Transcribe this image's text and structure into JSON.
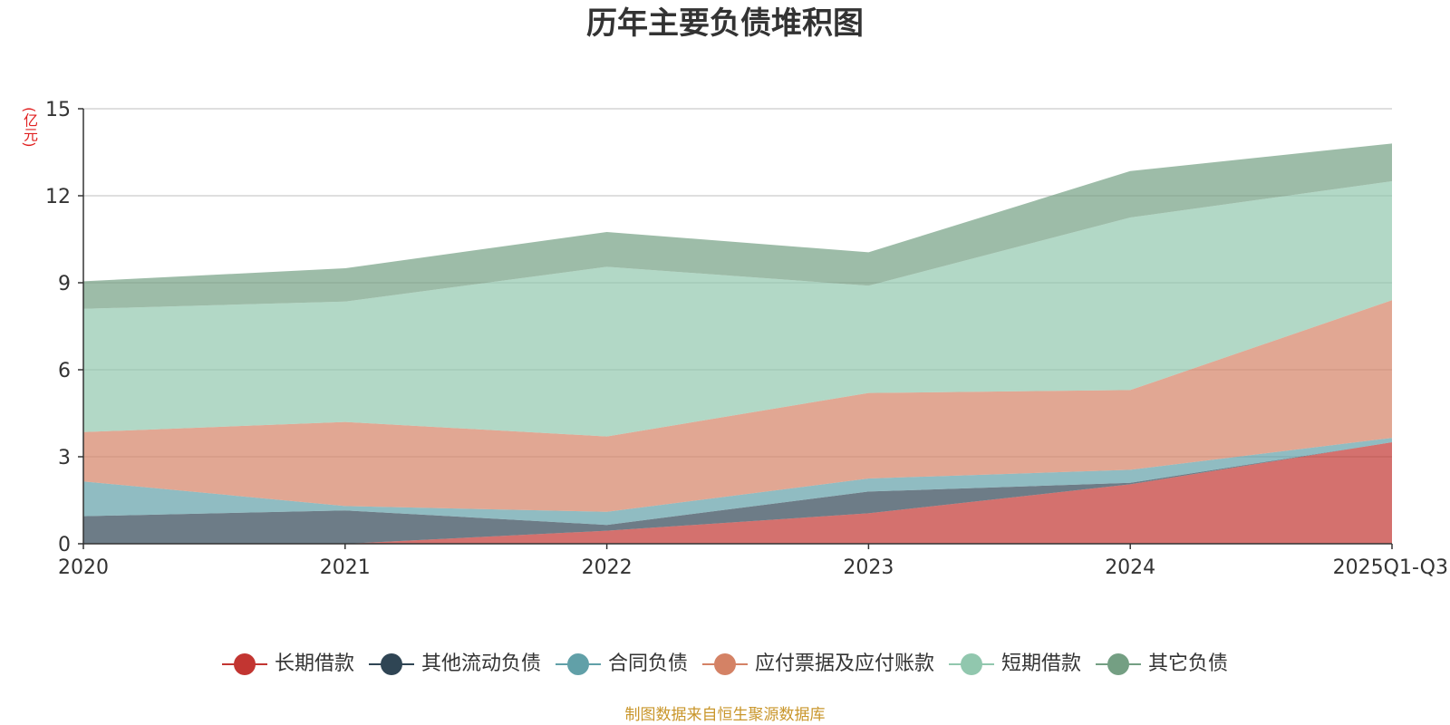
{
  "chart_data": {
    "type": "area",
    "stacked": true,
    "title": "历年主要负债堆积图",
    "unit_label": "(亿元)",
    "source_note": "制图数据来自恒生聚源数据库",
    "categories": [
      "2020",
      "2021",
      "2022",
      "2023",
      "2024",
      "2025Q1-Q3"
    ],
    "ylim": [
      0,
      15
    ],
    "yticks": [
      0,
      3,
      6,
      9,
      12,
      15
    ],
    "ytick_labels": [
      "0",
      "3",
      "6",
      "9",
      "12",
      "15"
    ],
    "grid": true,
    "legend_position": "bottom",
    "series": [
      {
        "name": "长期借款",
        "color": "#c23531",
        "values": [
          0.0,
          0.0,
          0.45,
          1.05,
          2.05,
          3.5
        ]
      },
      {
        "name": "其他流动负债",
        "color": "#2f4554",
        "values": [
          0.95,
          1.15,
          0.2,
          0.75,
          0.05,
          0.0
        ]
      },
      {
        "name": "合同负债",
        "color": "#61a0a8",
        "values": [
          1.2,
          0.15,
          0.45,
          0.45,
          0.45,
          0.15
        ]
      },
      {
        "name": "应付票据及应付账款",
        "color": "#d48265",
        "values": [
          1.7,
          2.9,
          2.6,
          2.95,
          2.75,
          4.75
        ]
      },
      {
        "name": "短期借款",
        "color": "#91c7ae",
        "values": [
          4.25,
          4.15,
          5.85,
          3.7,
          5.95,
          4.1
        ]
      },
      {
        "name": "其它负债",
        "color": "#749f83",
        "values": [
          0.95,
          1.15,
          1.2,
          1.15,
          1.6,
          1.3
        ]
      }
    ]
  }
}
